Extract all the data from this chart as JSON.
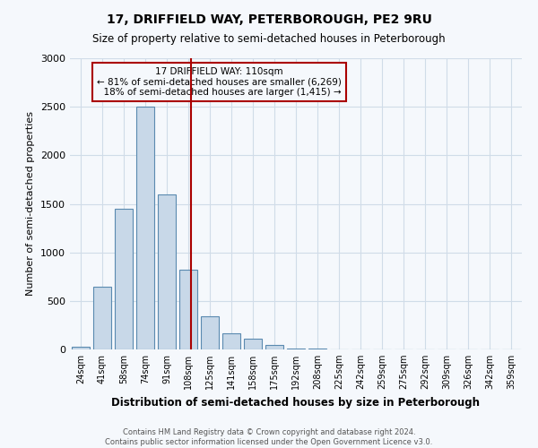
{
  "title": "17, DRIFFIELD WAY, PETERBOROUGH, PE2 9RU",
  "subtitle": "Size of property relative to semi-detached houses in Peterborough",
  "xlabel": "Distribution of semi-detached houses by size in Peterborough",
  "ylabel": "Number of semi-detached properties",
  "footnote1": "Contains HM Land Registry data © Crown copyright and database right 2024.",
  "footnote2": "Contains public sector information licensed under the Open Government Licence v3.0.",
  "bar_labels": [
    "24sqm",
    "41sqm",
    "58sqm",
    "74sqm",
    "91sqm",
    "108sqm",
    "125sqm",
    "141sqm",
    "158sqm",
    "175sqm",
    "192sqm",
    "208sqm",
    "225sqm",
    "242sqm",
    "259sqm",
    "275sqm",
    "292sqm",
    "309sqm",
    "326sqm",
    "342sqm",
    "359sqm"
  ],
  "bar_values": [
    30,
    650,
    1450,
    2500,
    1600,
    825,
    340,
    170,
    110,
    50,
    10,
    5,
    2,
    1,
    0,
    0,
    0,
    0,
    0,
    0,
    0
  ],
  "bar_color": "#c8d8e8",
  "bar_edge_color": "#5a8ab0",
  "ylim": [
    0,
    3000
  ],
  "yticks": [
    0,
    500,
    1000,
    1500,
    2000,
    2500,
    3000
  ],
  "property_label": "17 DRIFFIELD WAY: 110sqm",
  "pct_smaller": 81,
  "pct_larger": 18,
  "count_smaller": "6,269",
  "count_larger": "1,415",
  "vline_color": "#aa0000",
  "grid_color": "#d0dce8",
  "bg_color": "#f5f8fc",
  "vline_index": 5.12
}
